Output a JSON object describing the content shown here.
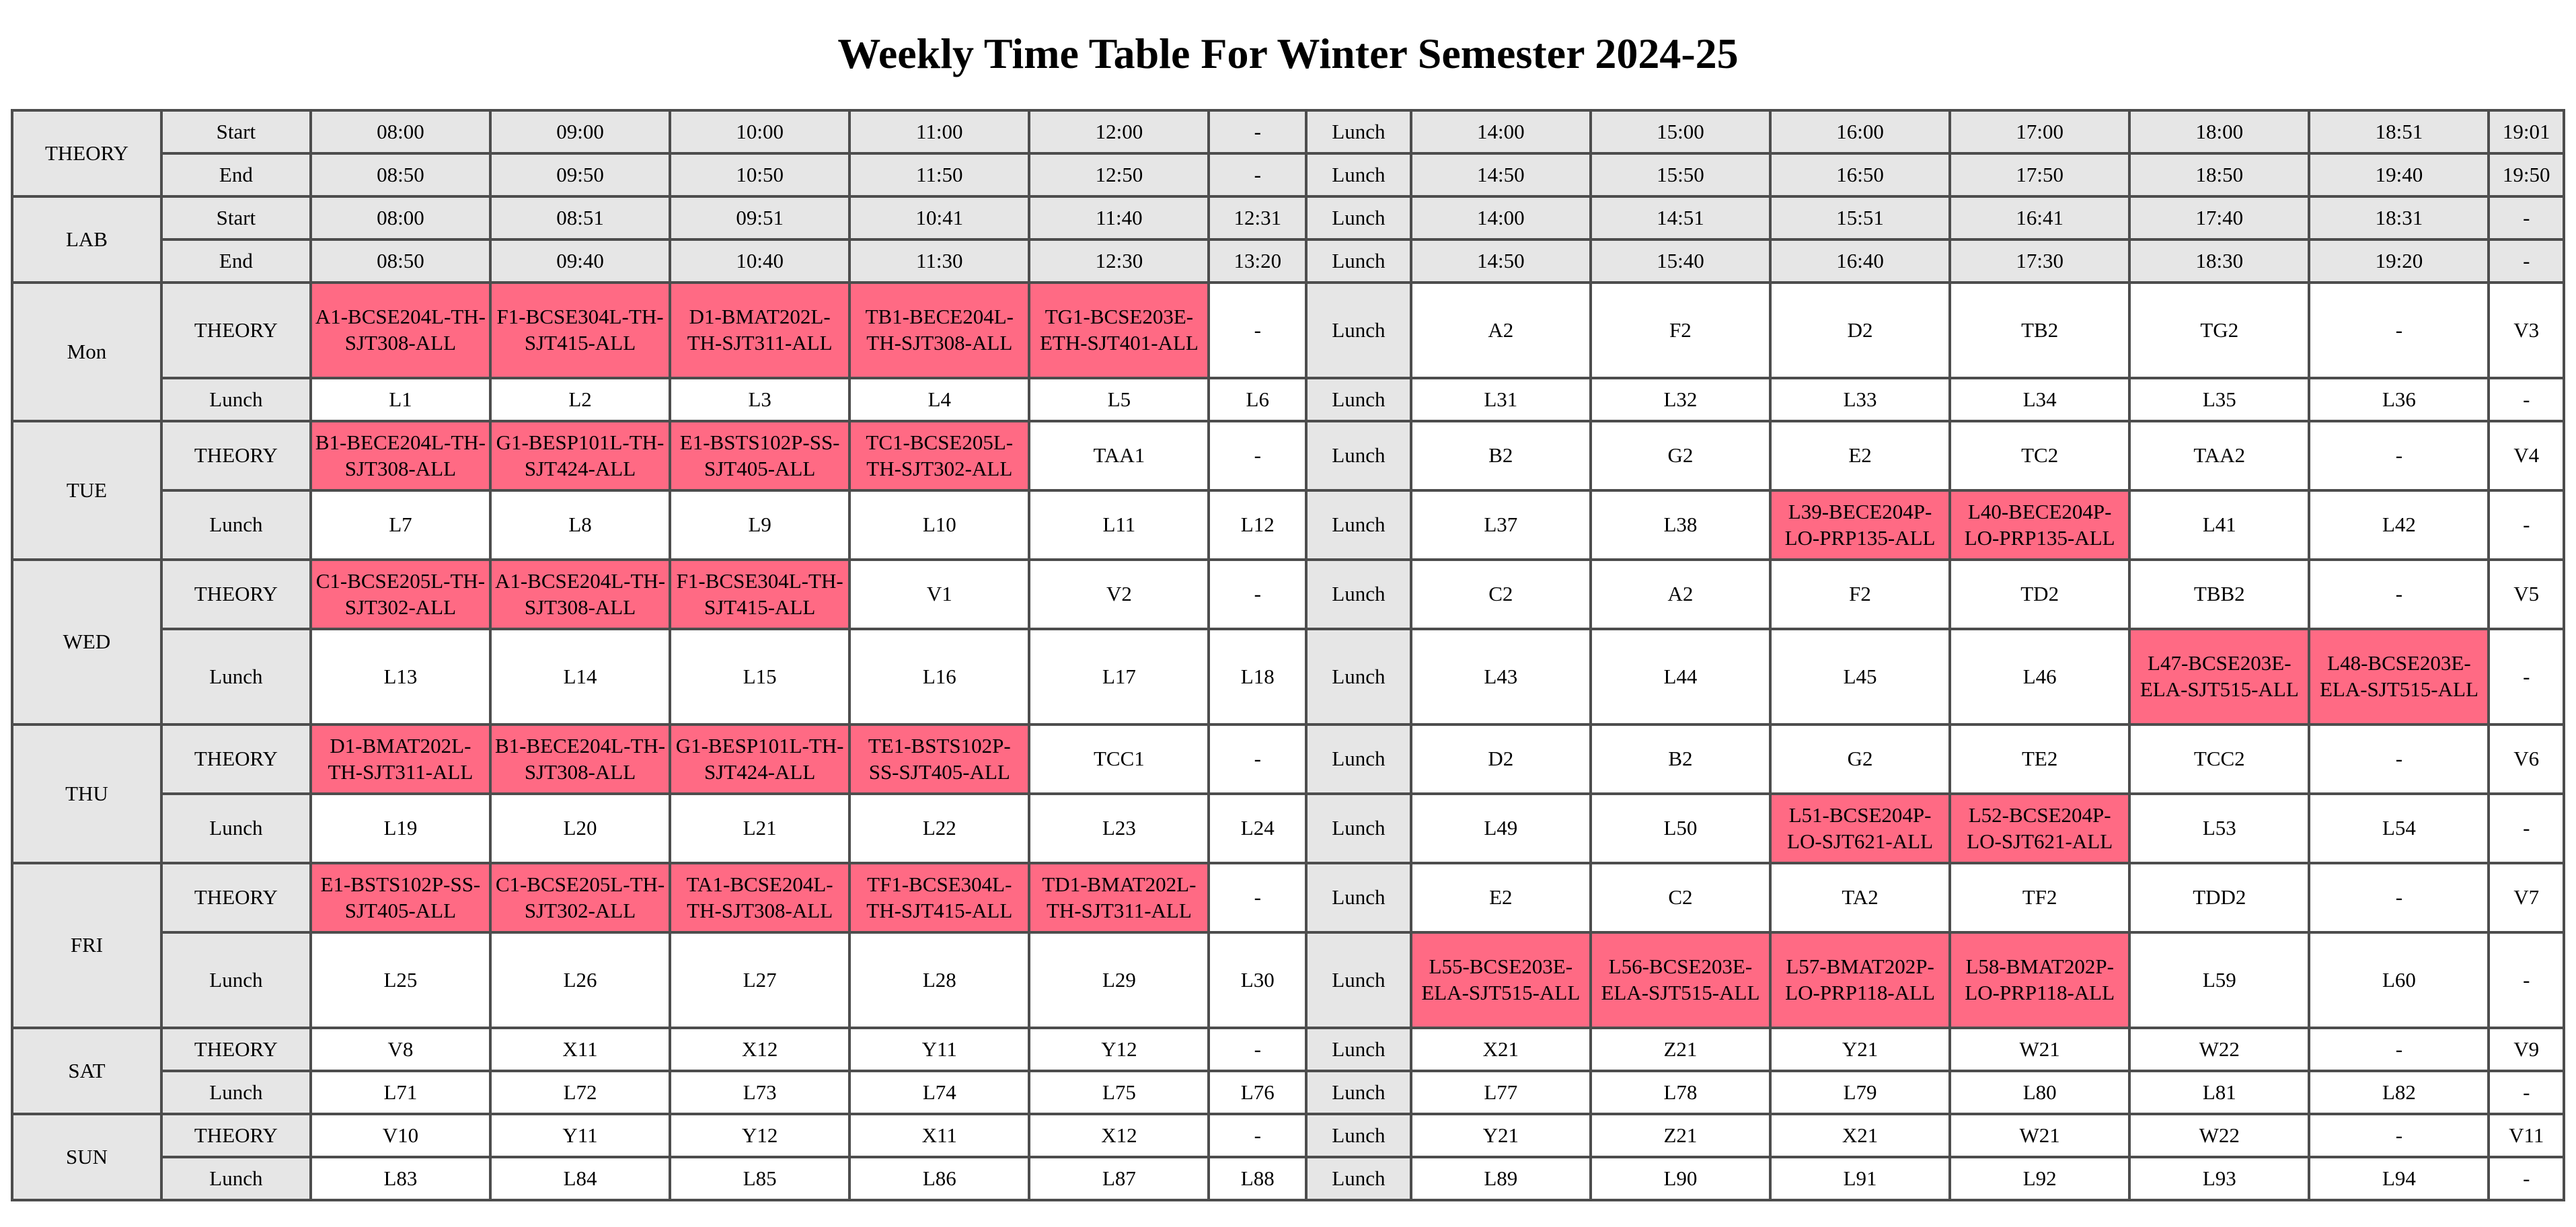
{
  "title": "Weekly Time Table For Winter Semester 2024-25",
  "colors": {
    "header_bg": "#e6e6e6",
    "registered_bg": "#ff6a84",
    "border": "#4d4d4d"
  },
  "headerRows": [
    {
      "label": "THEORY",
      "sub": "Start",
      "cells": [
        "08:00",
        "09:00",
        "10:00",
        "11:00",
        "12:00",
        "-",
        "Lunch",
        "14:00",
        "15:00",
        "16:00",
        "17:00",
        "18:00",
        "18:51",
        "19:01"
      ]
    },
    {
      "label": "THEORY",
      "sub": "End",
      "cells": [
        "08:50",
        "09:50",
        "10:50",
        "11:50",
        "12:50",
        "-",
        "Lunch",
        "14:50",
        "15:50",
        "16:50",
        "17:50",
        "18:50",
        "19:40",
        "19:50"
      ]
    },
    {
      "label": "LAB",
      "sub": "Start",
      "cells": [
        "08:00",
        "08:51",
        "09:51",
        "10:41",
        "11:40",
        "12:31",
        "Lunch",
        "14:00",
        "14:51",
        "15:51",
        "16:41",
        "17:40",
        "18:31",
        "-"
      ]
    },
    {
      "label": "LAB",
      "sub": "End",
      "cells": [
        "08:50",
        "09:40",
        "10:40",
        "11:30",
        "12:30",
        "13:20",
        "Lunch",
        "14:50",
        "15:40",
        "16:40",
        "17:30",
        "18:30",
        "19:20",
        "-"
      ]
    }
  ],
  "days": [
    {
      "name": "Mon",
      "rows": [
        {
          "type": "THEORY",
          "cells": [
            {
              "text": "A1-BCSE204L-TH-SJT308-ALL",
              "reg": true
            },
            {
              "text": "F1-BCSE304L-TH-SJT415-ALL",
              "reg": true
            },
            {
              "text": "D1-BMAT202L-TH-SJT311-ALL",
              "reg": true
            },
            {
              "text": "TB1-BECE204L-TH-SJT308-ALL",
              "reg": true
            },
            {
              "text": "TG1-BCSE203E-ETH-SJT401-ALL",
              "reg": true
            },
            {
              "text": "-"
            },
            {
              "text": "Lunch",
              "hdr": true
            },
            {
              "text": "A2"
            },
            {
              "text": "F2"
            },
            {
              "text": "D2"
            },
            {
              "text": "TB2"
            },
            {
              "text": "TG2"
            },
            {
              "text": "-"
            },
            {
              "text": "V3"
            }
          ]
        },
        {
          "type": "Lunch",
          "cells": [
            {
              "text": "L1"
            },
            {
              "text": "L2"
            },
            {
              "text": "L3"
            },
            {
              "text": "L4"
            },
            {
              "text": "L5"
            },
            {
              "text": "L6"
            },
            {
              "text": "Lunch",
              "hdr": true
            },
            {
              "text": "L31"
            },
            {
              "text": "L32"
            },
            {
              "text": "L33"
            },
            {
              "text": "L34"
            },
            {
              "text": "L35"
            },
            {
              "text": "L36"
            },
            {
              "text": "-"
            }
          ]
        }
      ]
    },
    {
      "name": "TUE",
      "rows": [
        {
          "type": "THEORY",
          "cells": [
            {
              "text": "B1-BECE204L-TH-SJT308-ALL",
              "reg": true
            },
            {
              "text": "G1-BESP101L-TH-SJT424-ALL",
              "reg": true
            },
            {
              "text": "E1-BSTS102P-SS-SJT405-ALL",
              "reg": true
            },
            {
              "text": "TC1-BCSE205L-TH-SJT302-ALL",
              "reg": true
            },
            {
              "text": "TAA1"
            },
            {
              "text": "-"
            },
            {
              "text": "Lunch",
              "hdr": true
            },
            {
              "text": "B2"
            },
            {
              "text": "G2"
            },
            {
              "text": "E2"
            },
            {
              "text": "TC2"
            },
            {
              "text": "TAA2"
            },
            {
              "text": "-"
            },
            {
              "text": "V4"
            }
          ]
        },
        {
          "type": "Lunch",
          "cells": [
            {
              "text": "L7"
            },
            {
              "text": "L8"
            },
            {
              "text": "L9"
            },
            {
              "text": "L10"
            },
            {
              "text": "L11"
            },
            {
              "text": "L12"
            },
            {
              "text": "Lunch",
              "hdr": true
            },
            {
              "text": "L37"
            },
            {
              "text": "L38"
            },
            {
              "text": "L39-BECE204P-LO-PRP135-ALL",
              "reg": true
            },
            {
              "text": "L40-BECE204P-LO-PRP135-ALL",
              "reg": true
            },
            {
              "text": "L41"
            },
            {
              "text": "L42"
            },
            {
              "text": "-"
            }
          ]
        }
      ]
    },
    {
      "name": "WED",
      "rows": [
        {
          "type": "THEORY",
          "cells": [
            {
              "text": "C1-BCSE205L-TH-SJT302-ALL",
              "reg": true
            },
            {
              "text": "A1-BCSE204L-TH-SJT308-ALL",
              "reg": true
            },
            {
              "text": "F1-BCSE304L-TH-SJT415-ALL",
              "reg": true
            },
            {
              "text": "V1"
            },
            {
              "text": "V2"
            },
            {
              "text": "-"
            },
            {
              "text": "Lunch",
              "hdr": true
            },
            {
              "text": "C2"
            },
            {
              "text": "A2"
            },
            {
              "text": "F2"
            },
            {
              "text": "TD2"
            },
            {
              "text": "TBB2"
            },
            {
              "text": "-"
            },
            {
              "text": "V5"
            }
          ]
        },
        {
          "type": "Lunch",
          "cells": [
            {
              "text": "L13"
            },
            {
              "text": "L14"
            },
            {
              "text": "L15"
            },
            {
              "text": "L16"
            },
            {
              "text": "L17"
            },
            {
              "text": "L18"
            },
            {
              "text": "Lunch",
              "hdr": true
            },
            {
              "text": "L43"
            },
            {
              "text": "L44"
            },
            {
              "text": "L45"
            },
            {
              "text": "L46"
            },
            {
              "text": "L47-BCSE203E-ELA-SJT515-ALL",
              "reg": true
            },
            {
              "text": "L48-BCSE203E-ELA-SJT515-ALL",
              "reg": true
            },
            {
              "text": "-"
            }
          ]
        }
      ]
    },
    {
      "name": "THU",
      "rows": [
        {
          "type": "THEORY",
          "cells": [
            {
              "text": "D1-BMAT202L-TH-SJT311-ALL",
              "reg": true
            },
            {
              "text": "B1-BECE204L-TH-SJT308-ALL",
              "reg": true
            },
            {
              "text": "G1-BESP101L-TH-SJT424-ALL",
              "reg": true
            },
            {
              "text": "TE1-BSTS102P-SS-SJT405-ALL",
              "reg": true
            },
            {
              "text": "TCC1"
            },
            {
              "text": "-"
            },
            {
              "text": "Lunch",
              "hdr": true
            },
            {
              "text": "D2"
            },
            {
              "text": "B2"
            },
            {
              "text": "G2"
            },
            {
              "text": "TE2"
            },
            {
              "text": "TCC2"
            },
            {
              "text": "-"
            },
            {
              "text": "V6"
            }
          ]
        },
        {
          "type": "Lunch",
          "cells": [
            {
              "text": "L19"
            },
            {
              "text": "L20"
            },
            {
              "text": "L21"
            },
            {
              "text": "L22"
            },
            {
              "text": "L23"
            },
            {
              "text": "L24"
            },
            {
              "text": "Lunch",
              "hdr": true
            },
            {
              "text": "L49"
            },
            {
              "text": "L50"
            },
            {
              "text": "L51-BCSE204P-LO-SJT621-ALL",
              "reg": true
            },
            {
              "text": "L52-BCSE204P-LO-SJT621-ALL",
              "reg": true
            },
            {
              "text": "L53"
            },
            {
              "text": "L54"
            },
            {
              "text": "-"
            }
          ]
        }
      ]
    },
    {
      "name": "FRI",
      "rows": [
        {
          "type": "THEORY",
          "cells": [
            {
              "text": "E1-BSTS102P-SS-SJT405-ALL",
              "reg": true
            },
            {
              "text": "C1-BCSE205L-TH-SJT302-ALL",
              "reg": true
            },
            {
              "text": "TA1-BCSE204L-TH-SJT308-ALL",
              "reg": true
            },
            {
              "text": "TF1-BCSE304L-TH-SJT415-ALL",
              "reg": true
            },
            {
              "text": "TD1-BMAT202L-TH-SJT311-ALL",
              "reg": true
            },
            {
              "text": "-"
            },
            {
              "text": "Lunch",
              "hdr": true
            },
            {
              "text": "E2"
            },
            {
              "text": "C2"
            },
            {
              "text": "TA2"
            },
            {
              "text": "TF2"
            },
            {
              "text": "TDD2"
            },
            {
              "text": "-"
            },
            {
              "text": "V7"
            }
          ]
        },
        {
          "type": "Lunch",
          "cells": [
            {
              "text": "L25"
            },
            {
              "text": "L26"
            },
            {
              "text": "L27"
            },
            {
              "text": "L28"
            },
            {
              "text": "L29"
            },
            {
              "text": "L30"
            },
            {
              "text": "Lunch",
              "hdr": true
            },
            {
              "text": "L55-BCSE203E-ELA-SJT515-ALL",
              "reg": true
            },
            {
              "text": "L56-BCSE203E-ELA-SJT515-ALL",
              "reg": true
            },
            {
              "text": "L57-BMAT202P-LO-PRP118-ALL",
              "reg": true
            },
            {
              "text": "L58-BMAT202P-LO-PRP118-ALL",
              "reg": true
            },
            {
              "text": "L59"
            },
            {
              "text": "L60"
            },
            {
              "text": "-"
            }
          ]
        }
      ]
    },
    {
      "name": "SAT",
      "rows": [
        {
          "type": "THEORY",
          "cells": [
            {
              "text": "V8"
            },
            {
              "text": "X11"
            },
            {
              "text": "X12"
            },
            {
              "text": "Y11"
            },
            {
              "text": "Y12"
            },
            {
              "text": "-"
            },
            {
              "text": "Lunch",
              "hdr": true
            },
            {
              "text": "X21"
            },
            {
              "text": "Z21"
            },
            {
              "text": "Y21"
            },
            {
              "text": "W21"
            },
            {
              "text": "W22"
            },
            {
              "text": "-"
            },
            {
              "text": "V9"
            }
          ]
        },
        {
          "type": "Lunch",
          "cells": [
            {
              "text": "L71"
            },
            {
              "text": "L72"
            },
            {
              "text": "L73"
            },
            {
              "text": "L74"
            },
            {
              "text": "L75"
            },
            {
              "text": "L76"
            },
            {
              "text": "Lunch",
              "hdr": true
            },
            {
              "text": "L77"
            },
            {
              "text": "L78"
            },
            {
              "text": "L79"
            },
            {
              "text": "L80"
            },
            {
              "text": "L81"
            },
            {
              "text": "L82"
            },
            {
              "text": "-"
            }
          ]
        }
      ]
    },
    {
      "name": "SUN",
      "rows": [
        {
          "type": "THEORY",
          "cells": [
            {
              "text": "V10"
            },
            {
              "text": "Y11"
            },
            {
              "text": "Y12"
            },
            {
              "text": "X11"
            },
            {
              "text": "X12"
            },
            {
              "text": "-"
            },
            {
              "text": "Lunch",
              "hdr": true
            },
            {
              "text": "Y21"
            },
            {
              "text": "Z21"
            },
            {
              "text": "X21"
            },
            {
              "text": "W21"
            },
            {
              "text": "W22"
            },
            {
              "text": "-"
            },
            {
              "text": "V11"
            }
          ]
        },
        {
          "type": "Lunch",
          "cells": [
            {
              "text": "L83"
            },
            {
              "text": "L84"
            },
            {
              "text": "L85"
            },
            {
              "text": "L86"
            },
            {
              "text": "L87"
            },
            {
              "text": "L88"
            },
            {
              "text": "Lunch",
              "hdr": true
            },
            {
              "text": "L89"
            },
            {
              "text": "L90"
            },
            {
              "text": "L91"
            },
            {
              "text": "L92"
            },
            {
              "text": "L93"
            },
            {
              "text": "L94"
            },
            {
              "text": "-"
            }
          ]
        }
      ]
    }
  ]
}
